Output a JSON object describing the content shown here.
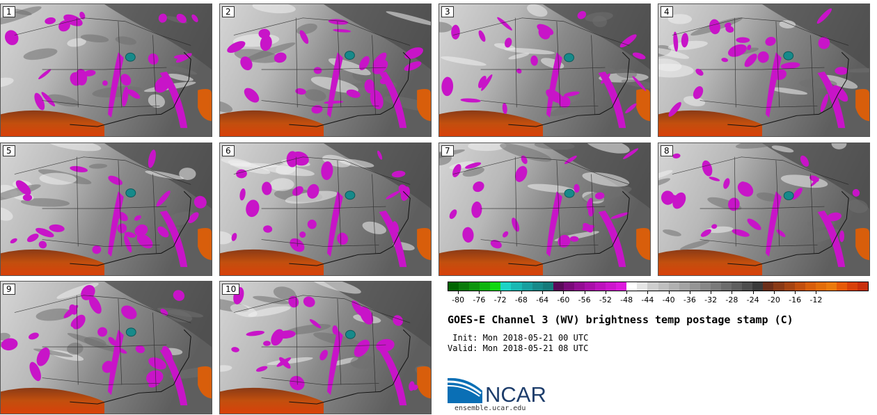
{
  "panels": [
    {
      "label": "1"
    },
    {
      "label": "2"
    },
    {
      "label": "3"
    },
    {
      "label": "4"
    },
    {
      "label": "5"
    },
    {
      "label": "6"
    },
    {
      "label": "7"
    },
    {
      "label": "8"
    },
    {
      "label": "9"
    },
    {
      "label": "10"
    }
  ],
  "colorbar": {
    "ticks": [
      "-80",
      "-76",
      "-72",
      "-68",
      "-64",
      "-60",
      "-56",
      "-52",
      "-48",
      "-44",
      "-40",
      "-36",
      "-32",
      "-28",
      "-24",
      "-20",
      "-16",
      "-12"
    ],
    "colors": [
      "#006400",
      "#0a7a0a",
      "#0c950c",
      "#0db40d",
      "#10d810",
      "#1cd3c6",
      "#19b8b3",
      "#179f9f",
      "#168a8a",
      "#147a7a",
      "#5a0a5a",
      "#7a0a7a",
      "#930d93",
      "#a80fa8",
      "#bc12bc",
      "#cc16cc",
      "#dd1add",
      "#ffffff",
      "#e6e6e6",
      "#cecece",
      "#bfbfbf",
      "#b1b1b1",
      "#a3a3a3",
      "#959595",
      "#878787",
      "#7a7a7a",
      "#6c6c6c",
      "#5e5e5e",
      "#4e4e4e",
      "#3a3a3a",
      "#6b2f1a",
      "#8a3a16",
      "#a64412",
      "#c24f0e",
      "#d85e0b",
      "#e36d0a",
      "#ec7a0c",
      "#e65a08",
      "#d8410a",
      "#c8300c"
    ]
  },
  "title": "GOES-E Channel 3 (WV) brightness temp postage stamp (C)",
  "init": " Init: Mon 2018-05-21 00 UTC",
  "valid": "Valid: Mon 2018-05-21 08 UTC",
  "logo": {
    "text": "NCAR",
    "url": "ensemble.ucar.edu"
  }
}
